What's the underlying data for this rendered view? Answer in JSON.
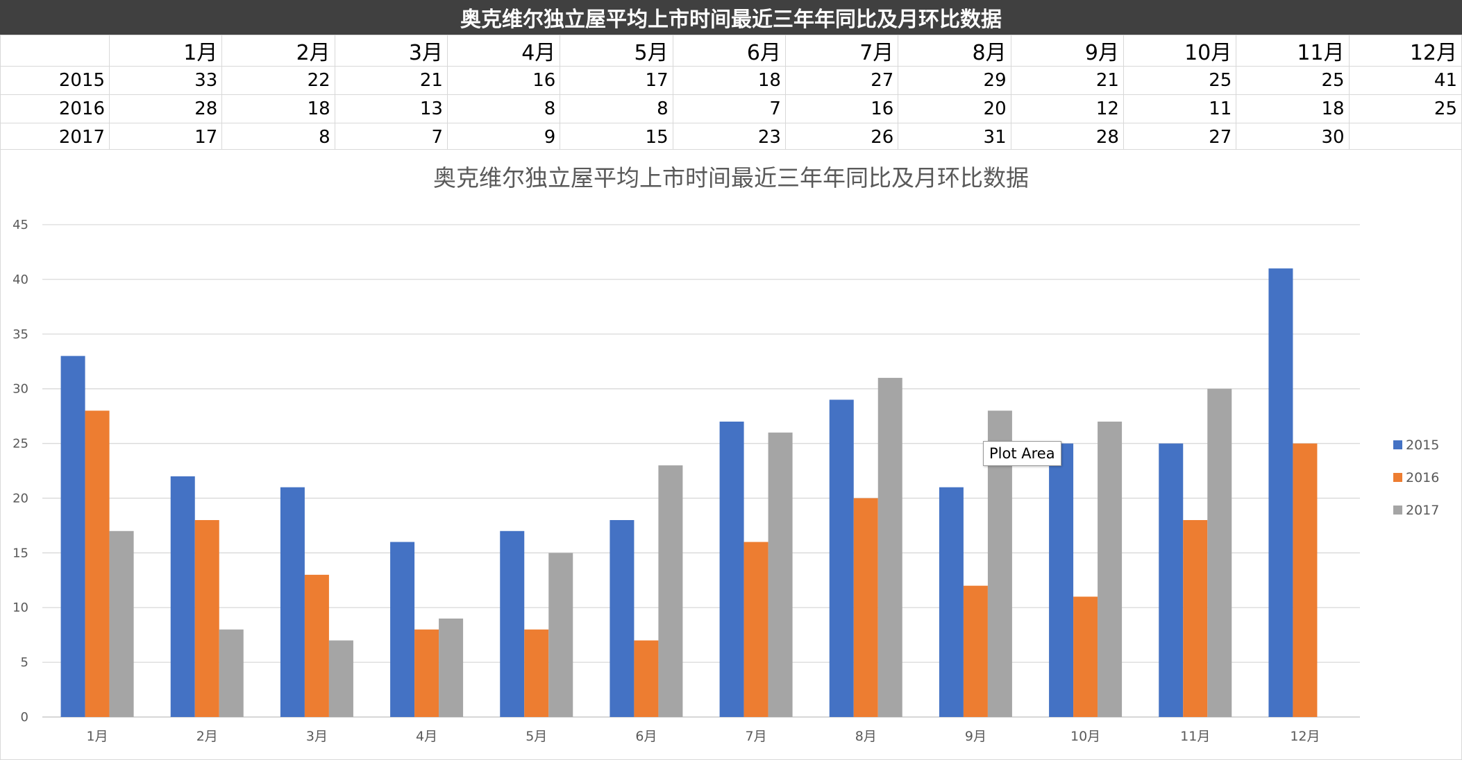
{
  "sheet_title": "奥克维尔独立屋平均上市时间最近三年年同比及月环比数据",
  "table": {
    "columns": [
      "1月",
      "2月",
      "3月",
      "4月",
      "5月",
      "6月",
      "7月",
      "8月",
      "9月",
      "10月",
      "11月",
      "12月"
    ],
    "rows": [
      {
        "label": "2015",
        "values": [
          "33",
          "22",
          "21",
          "16",
          "17",
          "18",
          "27",
          "29",
          "21",
          "25",
          "25",
          "41"
        ]
      },
      {
        "label": "2016",
        "values": [
          "28",
          "18",
          "13",
          "8",
          "8",
          "7",
          "16",
          "20",
          "12",
          "11",
          "18",
          "25"
        ]
      },
      {
        "label": "2017",
        "values": [
          "17",
          "8",
          "7",
          "9",
          "15",
          "23",
          "26",
          "31",
          "28",
          "27",
          "30",
          ""
        ]
      }
    ]
  },
  "chart_data": {
    "type": "bar",
    "title": "奥克维尔独立屋平均上市时间最近三年年同比及月环比数据",
    "categories": [
      "1月",
      "2月",
      "3月",
      "4月",
      "5月",
      "6月",
      "7月",
      "8月",
      "9月",
      "10月",
      "11月",
      "12月"
    ],
    "series": [
      {
        "name": "2015",
        "color": "#4472c4",
        "values": [
          33,
          22,
          21,
          16,
          17,
          18,
          27,
          29,
          21,
          25,
          25,
          41
        ]
      },
      {
        "name": "2016",
        "color": "#ed7d31",
        "values": [
          28,
          18,
          13,
          8,
          8,
          7,
          16,
          20,
          12,
          11,
          18,
          25
        ]
      },
      {
        "name": "2017",
        "color": "#a5a5a5",
        "values": [
          17,
          8,
          7,
          9,
          15,
          23,
          26,
          31,
          28,
          27,
          30,
          null
        ]
      }
    ],
    "ylim": [
      0,
      45
    ],
    "yticks": [
      0,
      5,
      10,
      15,
      20,
      25,
      30,
      35,
      40,
      45
    ],
    "grid": true,
    "legend": "right"
  },
  "tooltip": "Plot Area"
}
